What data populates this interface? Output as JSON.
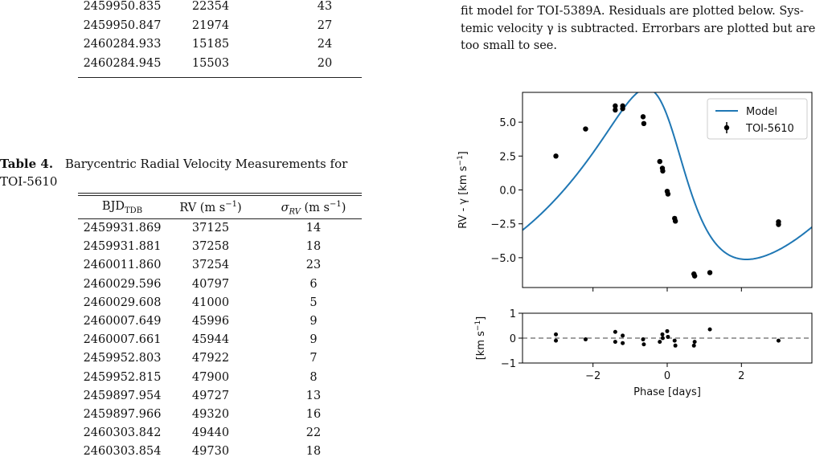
{
  "top_table": {
    "rows": [
      [
        "2459950.835",
        "22354",
        "43"
      ],
      [
        "2459950.847",
        "21974",
        "27"
      ],
      [
        "2460284.933",
        "15185",
        "24"
      ],
      [
        "2460284.945",
        "15503",
        "20"
      ]
    ]
  },
  "table4": {
    "caption_label": "Table 4.",
    "caption_text": "Barycentric Radial Velocity Measurements for",
    "caption_line2": "TOI-5610",
    "headers": [
      "BJD",
      "TDB",
      "RV (m s",
      "−1",
      ")",
      "σ",
      "RV",
      " (m s",
      "−1",
      ")"
    ],
    "rows": [
      [
        "2459931.869",
        "37125",
        "14"
      ],
      [
        "2459931.881",
        "37258",
        "18"
      ],
      [
        "2460011.860",
        "37254",
        "23"
      ],
      [
        "2460029.596",
        "40797",
        "6"
      ],
      [
        "2460029.608",
        "41000",
        "5"
      ],
      [
        "2460007.649",
        "45996",
        "9"
      ],
      [
        "2460007.661",
        "45944",
        "9"
      ],
      [
        "2459952.803",
        "47922",
        "7"
      ],
      [
        "2459952.815",
        "47900",
        "8"
      ],
      [
        "2459897.954",
        "49727",
        "13"
      ],
      [
        "2459897.966",
        "49320",
        "16"
      ],
      [
        "2460303.842",
        "49440",
        "22"
      ],
      [
        "2460303.854",
        "49730",
        "18"
      ]
    ]
  },
  "figure_caption": {
    "lines": [
      "fit model for TOI-5389A. Residuals are plotted below. Sys-",
      "temic velocity γ is subtracted. Errorbars are plotted but are",
      "too small to see."
    ]
  },
  "chart_data": {
    "type": "scatter",
    "main_panel": {
      "ylabel_prefix": "RV - γ [km s",
      "ylabel_exp": "−1",
      "ylabel_suffix": "]",
      "xlim": [
        -3.9,
        3.9
      ],
      "ylim": [
        -7.2,
        7.2
      ],
      "yticks": [
        "5.0",
        "2.5",
        "0.0",
        "−2.5",
        "−5.0"
      ],
      "ytick_values": [
        5.0,
        2.5,
        0.0,
        -2.5,
        -5.0
      ],
      "legend_position": "top-right",
      "legend": [
        "Model",
        "TOI-5610"
      ],
      "model_color": "#1f77b4",
      "point_color": "#000000",
      "points": [
        [
          -3.0,
          2.5
        ],
        [
          -2.2,
          4.5
        ],
        [
          -1.4,
          6.2
        ],
        [
          -1.4,
          5.9
        ],
        [
          -1.2,
          6.2
        ],
        [
          -1.2,
          6.0
        ],
        [
          -0.65,
          5.4
        ],
        [
          -0.63,
          4.9
        ],
        [
          -0.2,
          2.1
        ],
        [
          -0.13,
          1.6
        ],
        [
          -0.12,
          1.4
        ],
        [
          0.0,
          -0.1
        ],
        [
          0.02,
          -0.3
        ],
        [
          0.2,
          -2.1
        ],
        [
          0.22,
          -2.3
        ],
        [
          0.72,
          -6.2
        ],
        [
          0.74,
          -6.35
        ],
        [
          1.15,
          -6.1
        ],
        [
          3.0,
          -2.35
        ],
        [
          3.0,
          -2.55
        ]
      ]
    },
    "residual_panel": {
      "ylabel_prefix": "[km s",
      "ylabel_exp": "−1",
      "ylabel_suffix": "]",
      "ylim": [
        -1,
        1
      ],
      "yticks": [
        "1",
        "0",
        "−1"
      ],
      "ytick_values": [
        1,
        0,
        -1
      ],
      "baseline_color": "#808080",
      "points": [
        [
          -3.0,
          0.15
        ],
        [
          -3.0,
          -0.1
        ],
        [
          -2.2,
          -0.05
        ],
        [
          -1.4,
          0.25
        ],
        [
          -1.4,
          -0.15
        ],
        [
          -1.2,
          0.1
        ],
        [
          -1.2,
          -0.2
        ],
        [
          -0.65,
          -0.05
        ],
        [
          -0.63,
          -0.25
        ],
        [
          -0.2,
          -0.15
        ],
        [
          -0.13,
          0.15
        ],
        [
          -0.12,
          0.0
        ],
        [
          0.0,
          0.28
        ],
        [
          0.02,
          0.05
        ],
        [
          0.2,
          -0.1
        ],
        [
          0.22,
          -0.3
        ],
        [
          0.72,
          -0.3
        ],
        [
          0.74,
          -0.15
        ],
        [
          1.15,
          0.35
        ],
        [
          3.0,
          -0.1
        ]
      ]
    },
    "xlabel": "Phase [days]",
    "xticks": [
      "−2",
      "0",
      "2"
    ],
    "xtick_values": [
      -2,
      0,
      2
    ]
  }
}
